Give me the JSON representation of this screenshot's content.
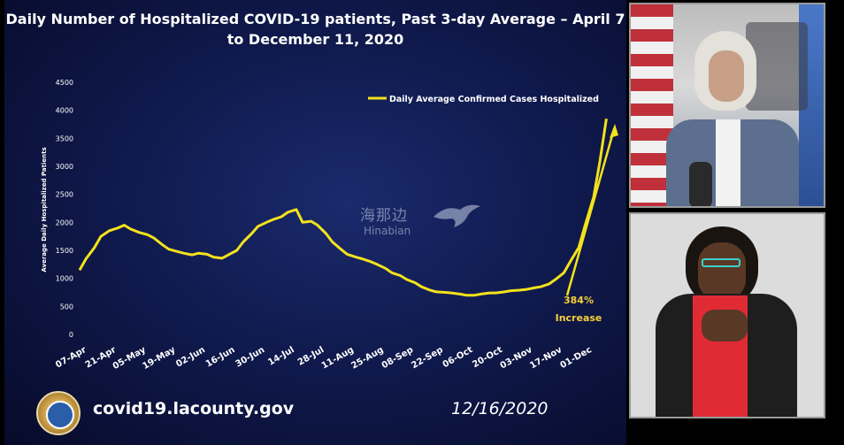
{
  "title": "Daily Number of Hospitalized COVID-19 patients, Past 3-day Average – April 7 to December 11, 2020",
  "footer": {
    "url": "covid19.lacounty.gov",
    "date": "12/16/2020"
  },
  "watermark": {
    "chinese": "海那边",
    "english": "Hinabian"
  },
  "colors": {
    "line": "#f3e21c",
    "annotation": "#f5cf3a",
    "background": "#101a4e"
  },
  "chart_data": {
    "type": "line",
    "title": "Daily Number of Hospitalized COVID-19 patients, Past 3-day Average – April 7 to December 11, 2020",
    "xlabel": "",
    "ylabel": "Average Daily Hospitalized Patients",
    "ylim": [
      0,
      4500
    ],
    "yticks": [
      0,
      500,
      1000,
      1500,
      2000,
      2500,
      3000,
      3500,
      4000,
      4500
    ],
    "xticks": [
      "07-Apr",
      "21-Apr",
      "05-May",
      "19-May",
      "02-Jun",
      "16-Jun",
      "30-Jun",
      "14-Jul",
      "28-Jul",
      "11-Aug",
      "25-Aug",
      "08-Sep",
      "22-Sep",
      "06-Oct",
      "20-Oct",
      "03-Nov",
      "17-Nov",
      "01-Dec"
    ],
    "legend": {
      "position": "top-right",
      "entries": [
        "Daily Average Confirmed Cases Hospitalized"
      ]
    },
    "grid": false,
    "series": [
      {
        "name": "Daily Average Confirmed Cases Hospitalized",
        "x": [
          "07-Apr",
          "10-Apr",
          "14-Apr",
          "17-Apr",
          "21-Apr",
          "25-Apr",
          "28-Apr",
          "01-May",
          "05-May",
          "09-May",
          "12-May",
          "16-May",
          "19-May",
          "23-May",
          "26-May",
          "30-May",
          "02-Jun",
          "06-Jun",
          "09-Jun",
          "13-Jun",
          "16-Jun",
          "20-Jun",
          "23-Jun",
          "27-Jun",
          "30-Jun",
          "04-Jul",
          "07-Jul",
          "11-Jul",
          "14-Jul",
          "18-Jul",
          "21-Jul",
          "25-Jul",
          "28-Jul",
          "01-Aug",
          "04-Aug",
          "08-Aug",
          "11-Aug",
          "15-Aug",
          "18-Aug",
          "22-Aug",
          "25-Aug",
          "29-Aug",
          "01-Sep",
          "05-Sep",
          "08-Sep",
          "12-Sep",
          "15-Sep",
          "19-Sep",
          "22-Sep",
          "26-Sep",
          "29-Sep",
          "03-Oct",
          "06-Oct",
          "10-Oct",
          "13-Oct",
          "17-Oct",
          "20-Oct",
          "24-Oct",
          "27-Oct",
          "31-Oct",
          "03-Nov",
          "07-Nov",
          "10-Nov",
          "14-Nov",
          "17-Nov",
          "21-Nov",
          "24-Nov",
          "28-Nov",
          "01-Dec",
          "05-Dec",
          "08-Dec",
          "11-Dec"
        ],
        "values": [
          1150,
          1350,
          1550,
          1750,
          1850,
          1900,
          1950,
          1880,
          1820,
          1780,
          1720,
          1600,
          1520,
          1480,
          1450,
          1420,
          1450,
          1430,
          1380,
          1360,
          1420,
          1500,
          1650,
          1800,
          1930,
          2000,
          2050,
          2100,
          2180,
          2230,
          2000,
          2020,
          1950,
          1800,
          1650,
          1520,
          1430,
          1380,
          1350,
          1300,
          1250,
          1180,
          1100,
          1050,
          980,
          920,
          850,
          790,
          760,
          750,
          740,
          720,
          700,
          700,
          720,
          740,
          740,
          760,
          780,
          790,
          800,
          830,
          850,
          900,
          980,
          1100,
          1300,
          1550,
          1950,
          2450,
          3100,
          3850
        ]
      }
    ],
    "annotations": [
      {
        "text": "384%"
      },
      {
        "text": "Increase"
      }
    ]
  }
}
